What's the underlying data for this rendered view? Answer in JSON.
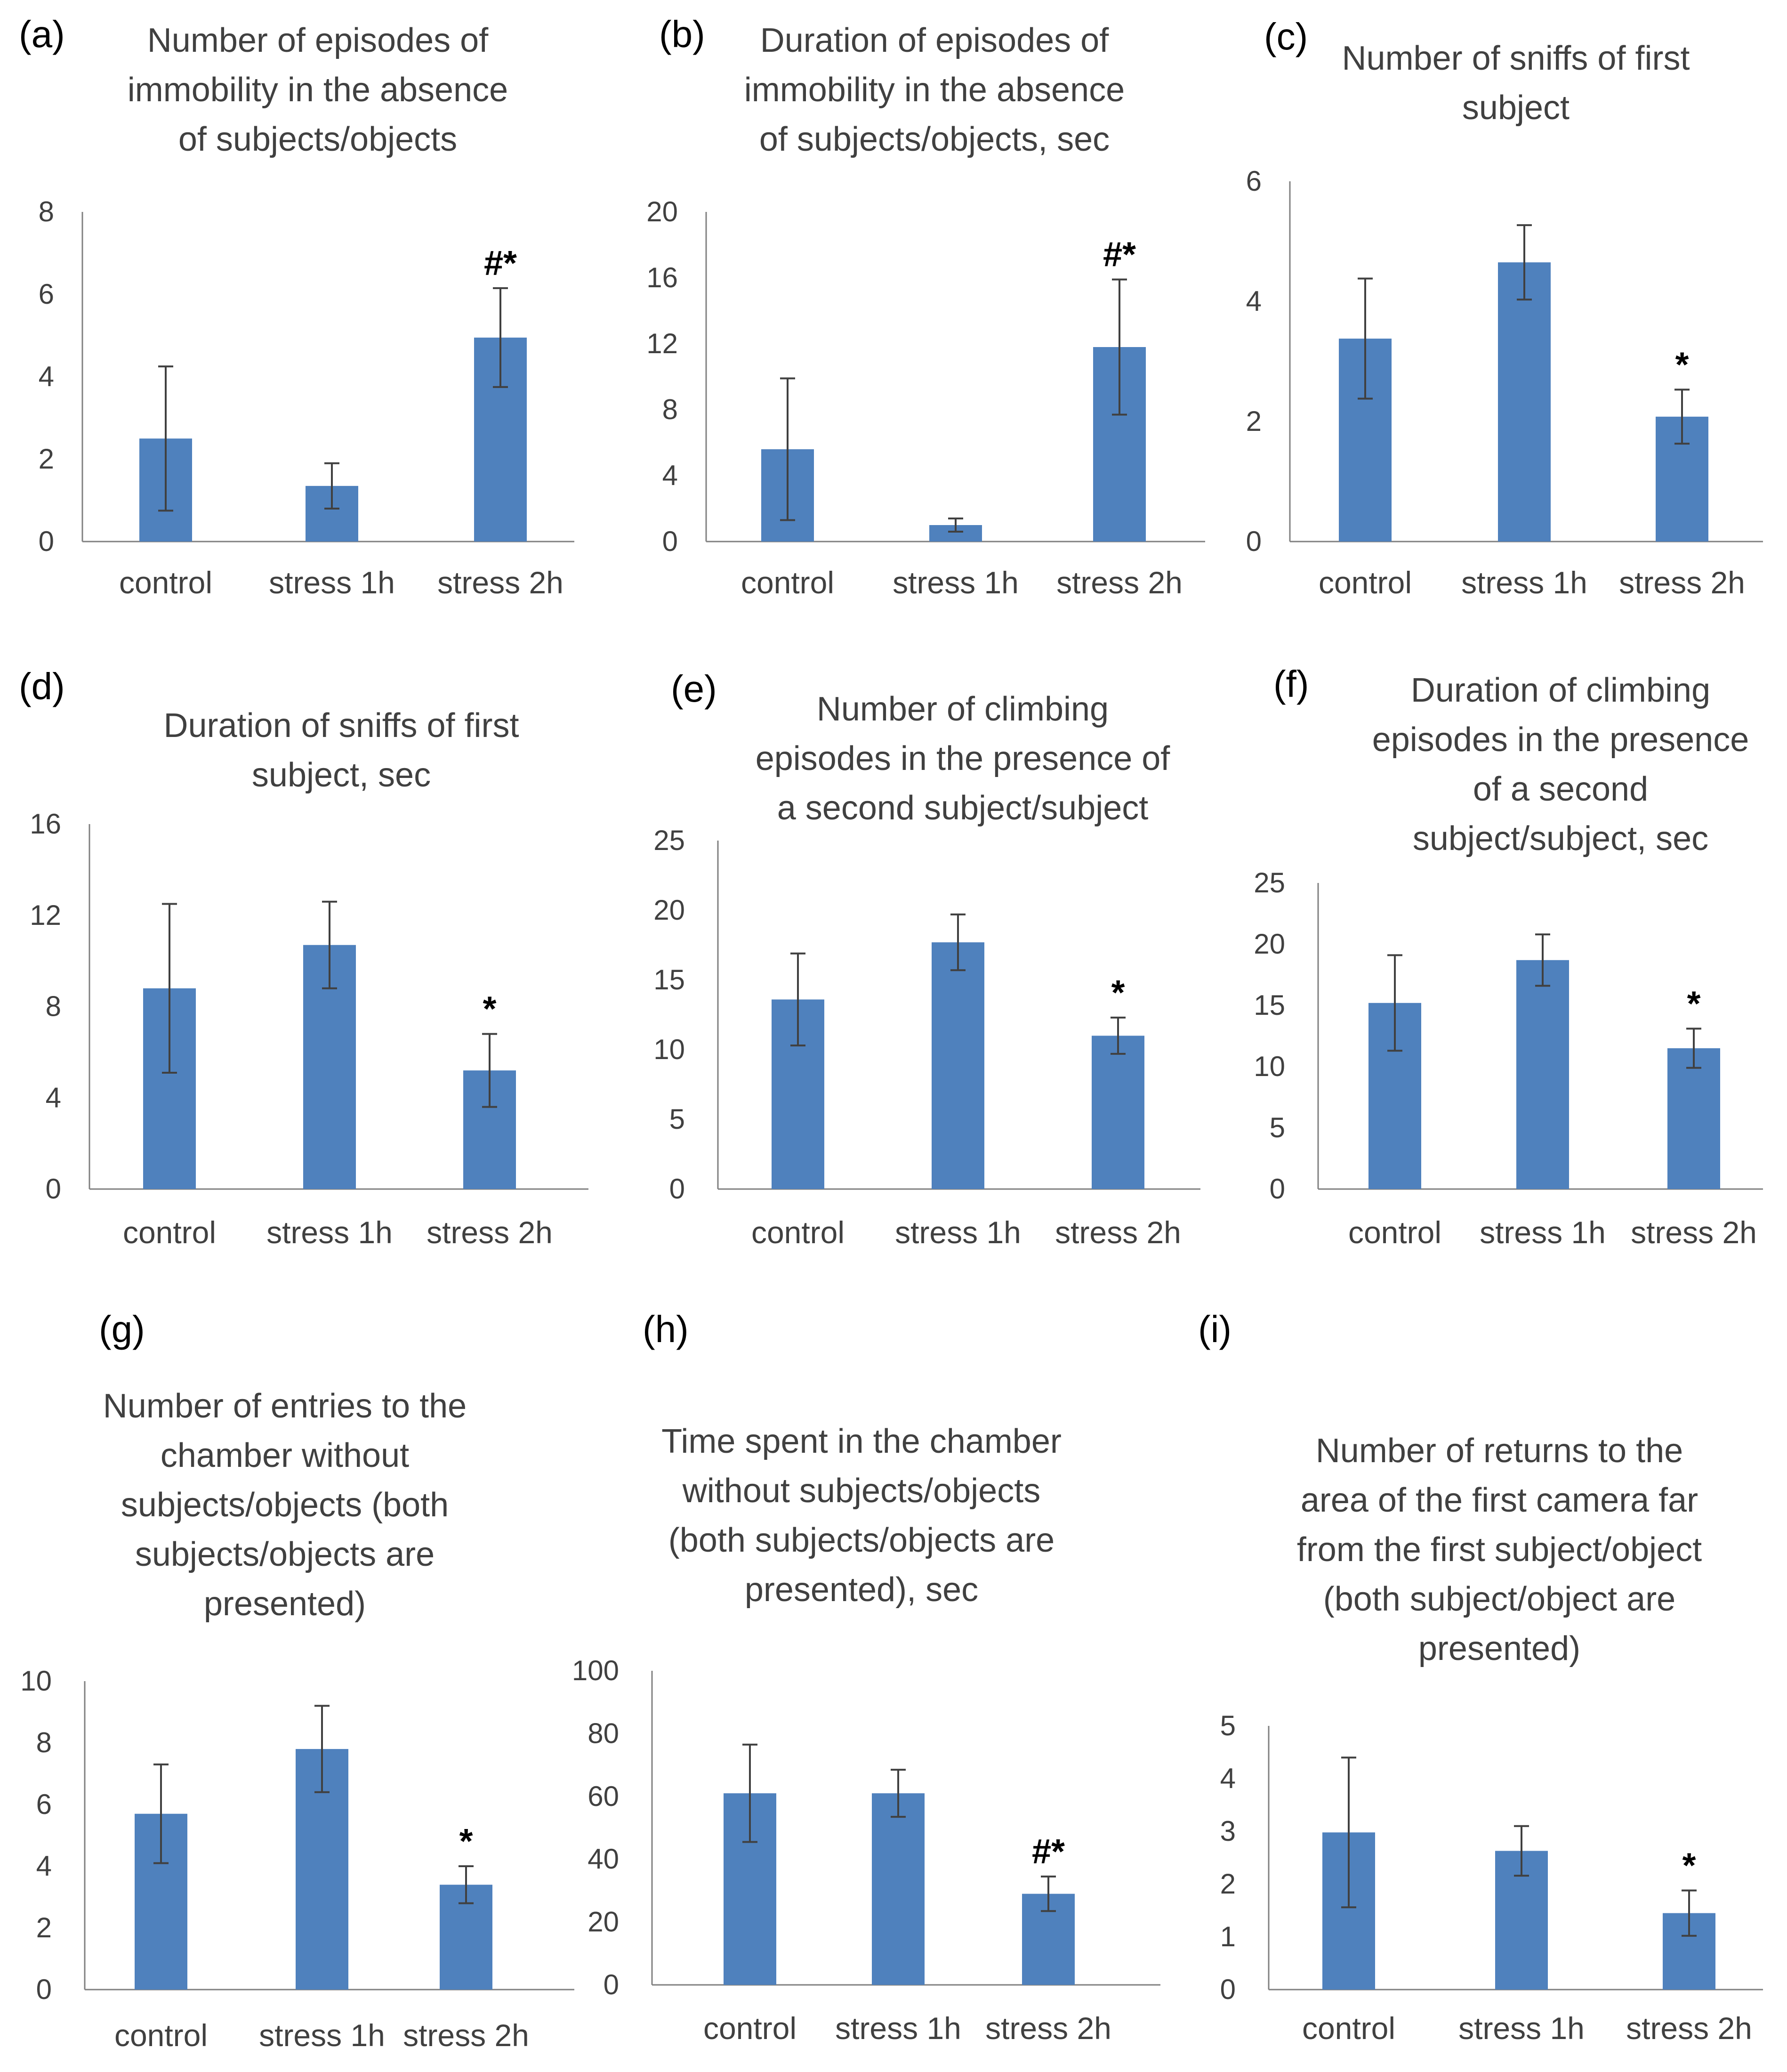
{
  "colors": {
    "bar": "#4f81bd",
    "axis": "#808080",
    "text": "#404040"
  },
  "chart_data": [
    {
      "panel": "(a)",
      "type": "bar",
      "title": [
        "Number of episodes of",
        "immobility in the absence",
        "of subjects/objects"
      ],
      "categories": [
        "control",
        "stress 1h",
        "stress 2h"
      ],
      "values": [
        2.5,
        1.35,
        4.95
      ],
      "errors": [
        1.75,
        0.55,
        1.2
      ],
      "significance": [
        "",
        "",
        "#*"
      ],
      "ylim": [
        0,
        8
      ],
      "yticks": [
        "0",
        "2",
        "4",
        "6",
        "8"
      ]
    },
    {
      "panel": "(b)",
      "type": "bar",
      "title": [
        "Duration of episodes of",
        "immobility in the absence",
        "of subjects/objects, sec"
      ],
      "categories": [
        "control",
        "stress 1h",
        "stress 2h"
      ],
      "values": [
        5.6,
        1.0,
        11.8
      ],
      "errors": [
        4.3,
        0.4,
        4.1
      ],
      "significance": [
        "",
        "",
        "#*"
      ],
      "ylim": [
        0,
        20
      ],
      "yticks": [
        "0",
        "4",
        "8",
        "12",
        "16",
        "20"
      ]
    },
    {
      "panel": "(c)",
      "type": "bar",
      "title": [
        "Number of sniffs of first",
        "subject"
      ],
      "categories": [
        "control",
        "stress 1h",
        "stress 2h"
      ],
      "values": [
        3.38,
        4.65,
        2.08
      ],
      "errors": [
        1.0,
        0.62,
        0.45
      ],
      "significance": [
        "",
        "",
        "*"
      ],
      "ylim": [
        0,
        6
      ],
      "yticks": [
        "0",
        "2",
        "4",
        "6"
      ]
    },
    {
      "panel": "(d)",
      "type": "bar",
      "title": [
        "Duration of sniffs of first",
        "subject, sec"
      ],
      "categories": [
        "control",
        "stress 1h",
        "stress 2h"
      ],
      "values": [
        8.8,
        10.7,
        5.2
      ],
      "errors": [
        3.7,
        1.9,
        1.6
      ],
      "significance": [
        "",
        "",
        "*"
      ],
      "ylim": [
        0,
        16
      ],
      "yticks": [
        "0",
        "4",
        "8",
        "12",
        "16"
      ]
    },
    {
      "panel": "(e)",
      "type": "bar",
      "title": [
        "Number of climbing",
        "episodes in the presence of",
        "a second subject/subject"
      ],
      "categories": [
        "control",
        "stress 1h",
        "stress 2h"
      ],
      "values": [
        13.6,
        17.7,
        11.0
      ],
      "errors": [
        3.3,
        2.0,
        1.3
      ],
      "significance": [
        "",
        "",
        "*"
      ],
      "ylim": [
        0,
        25
      ],
      "yticks": [
        "0",
        "5",
        "10",
        "15",
        "20",
        "25"
      ]
    },
    {
      "panel": "(f)",
      "type": "bar",
      "title": [
        "Duration of climbing",
        "episodes in the presence",
        "of a second",
        "subject/subject, sec"
      ],
      "categories": [
        "control",
        "stress 1h",
        "stress 2h"
      ],
      "values": [
        15.2,
        18.7,
        11.5
      ],
      "errors": [
        3.9,
        2.1,
        1.6
      ],
      "significance": [
        "",
        "",
        "*"
      ],
      "ylim": [
        0,
        25
      ],
      "yticks": [
        "0",
        "5",
        "10",
        "15",
        "20",
        "25"
      ]
    },
    {
      "panel": "(g)",
      "type": "bar",
      "title": [
        "Number of entries to the",
        "chamber without",
        "subjects/objects (both",
        "subjects/objects are",
        "presented)"
      ],
      "categories": [
        "control",
        "stress 1h",
        "stress 2h"
      ],
      "values": [
        5.7,
        7.8,
        3.4
      ],
      "errors": [
        1.6,
        1.4,
        0.6
      ],
      "significance": [
        "",
        "",
        "*"
      ],
      "ylim": [
        0,
        10
      ],
      "yticks": [
        "0",
        "2",
        "4",
        "6",
        "8",
        "10"
      ]
    },
    {
      "panel": "(h)",
      "type": "bar",
      "title": [
        "Time spent in the chamber",
        "without subjects/objects",
        "(both subjects/objects are",
        "presented), sec"
      ],
      "categories": [
        "control",
        "stress 1h",
        "stress 2h"
      ],
      "values": [
        61,
        61,
        29
      ],
      "errors": [
        15.5,
        7.5,
        5.5
      ],
      "significance": [
        "",
        "",
        "#*"
      ],
      "ylim": [
        0,
        100
      ],
      "yticks": [
        "0",
        "20",
        "40",
        "60",
        "80",
        "100"
      ]
    },
    {
      "panel": "(i)",
      "type": "bar",
      "title": [
        "Number of returns to the",
        "area of the first camera far",
        "from the first subject/object",
        "(both subject/object are",
        "presented)"
      ],
      "categories": [
        "control",
        "stress 1h",
        "stress 2h"
      ],
      "values": [
        2.98,
        2.63,
        1.45
      ],
      "errors": [
        1.42,
        0.47,
        0.43
      ],
      "significance": [
        "",
        "",
        "*"
      ],
      "ylim": [
        0,
        5
      ],
      "yticks": [
        "0",
        "1",
        "2",
        "3",
        "4",
        "5"
      ]
    }
  ]
}
